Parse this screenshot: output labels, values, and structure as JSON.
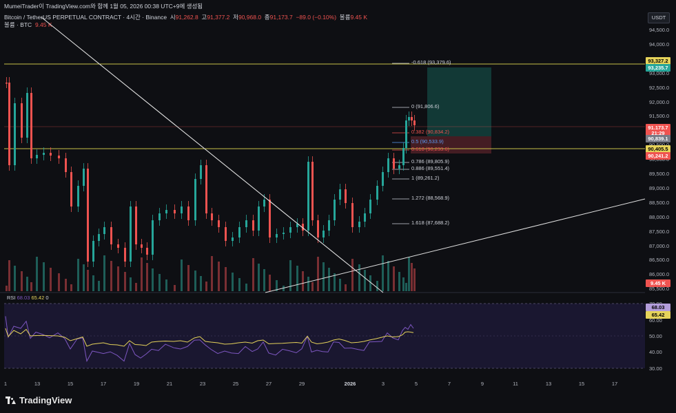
{
  "header": {
    "line1_prefix": "MumeiTrader이 TradingView.com와 함께 1월 05, 2026 00:38 UTC+9에 생성됨",
    "symbol_title": "Bitcoin / TetherUS PERPETUAL CONTRACT · 4시간 · Binance",
    "open_label": "시",
    "open_value": "91,262.8",
    "high_label": "고",
    "high_value": "91,377.2",
    "low_label": "저",
    "low_value": "90,968.0",
    "close_label": "종",
    "close_value": "91,173.7",
    "change": "−89.0 (−0.10%)",
    "volume_label": "볼륨",
    "volume_value": "9.45 K",
    "line3_label": "볼륨 · BTC",
    "line3_value": "9.45 K"
  },
  "currency_button": "USDT",
  "price_axis": [
    "94,500.0",
    "94,000.0",
    "93,500.0",
    "93,000.0",
    "92,500.0",
    "92,000.0",
    "91,500.0",
    "91,000.0",
    "90,500.0",
    "90,000.0",
    "89,500.0",
    "89,000.0",
    "88,500.0",
    "88,000.0",
    "87,500.0",
    "87,000.0",
    "86,500.0",
    "86,000.0",
    "85,500.0"
  ],
  "price_tags": [
    {
      "text": "93,327.2",
      "bg": "#e6d35a",
      "fg": "#000000"
    },
    {
      "text": "93,235.7",
      "bg": "#26a69a",
      "fg": "#ffffff"
    },
    {
      "text": "91,173.7",
      "bg": "#ef5350",
      "fg": "#ffffff"
    },
    {
      "text": "21:29",
      "bg": "#ef5350",
      "fg": "#ffffff"
    },
    {
      "text": "90,839.1",
      "bg": "#787b86",
      "fg": "#ffffff"
    },
    {
      "text": "90,405.5",
      "bg": "#e6d35a",
      "fg": "#000000"
    },
    {
      "text": "90,241.2",
      "bg": "#ef5350",
      "fg": "#ffffff"
    },
    {
      "text": "9.45 K",
      "bg": "#ef5350",
      "fg": "#ffffff"
    }
  ],
  "fib_levels": [
    {
      "text": "-0.618 (93,379.6)",
      "color": "#d1d4dc"
    },
    {
      "text": "0 (91,806.6)",
      "color": "#d1d4dc"
    },
    {
      "text": "0.382 (90,834.2)",
      "color": "#ef5350"
    },
    {
      "text": "0.5 (90,533.9)",
      "color": "#5b9cf6"
    },
    {
      "text": "0.618 (90,233.6)",
      "color": "#ef5350"
    },
    {
      "text": "0.786 (89,805.9)",
      "color": "#d1d4dc"
    },
    {
      "text": "0.886 (89,551.4)",
      "color": "#d1d4dc"
    },
    {
      "text": "1 (89,261.2)",
      "color": "#d1d4dc"
    },
    {
      "text": "1.272 (88,568.9)",
      "color": "#d1d4dc"
    },
    {
      "text": "1.618 (87,688.2)",
      "color": "#d1d4dc"
    }
  ],
  "rsi": {
    "label": "RSI",
    "value1": "68.03",
    "value2": "65.42",
    "value3": "0",
    "axis": [
      "70.00",
      "60.00",
      "50.00",
      "40.00",
      "30.00"
    ],
    "tag1": "68.03",
    "tag2": "65.42"
  },
  "time_axis": [
    "1",
    "13",
    "15",
    "17",
    "19",
    "21",
    "23",
    "25",
    "27",
    "29",
    "2026",
    "3",
    "5",
    "7",
    "9",
    "11",
    "13",
    "15",
    "17"
  ],
  "brand": "TradingView",
  "colors": {
    "up": "#26a69a",
    "down": "#ef5350",
    "horizontal_line": "#c8c24a",
    "trendline": "#e0e0e0"
  }
}
